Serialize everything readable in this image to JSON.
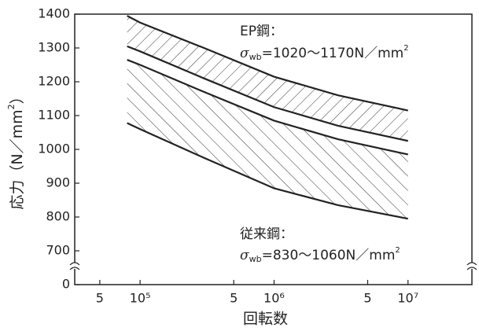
{
  "chart_data": {
    "type": "band-line",
    "xlabel": {
      "text": "回転数"
    },
    "ylabel": {
      "text": "応力（N／mm",
      "sup": "2",
      "end": "）"
    },
    "log_x": true,
    "xlim": [
      32500,
      30000000
    ],
    "xticks": [
      {
        "value": 50000,
        "label": "5"
      },
      {
        "value": 100000,
        "label": "10⁵"
      },
      {
        "value": 500000,
        "label": "5"
      },
      {
        "value": 1000000,
        "label": "10⁶"
      },
      {
        "value": 5000000,
        "label": "5"
      },
      {
        "value": 10000000,
        "label": "10⁷"
      }
    ],
    "ylim": [
      600,
      1400
    ],
    "yticks": [
      0,
      700,
      800,
      900,
      1000,
      1100,
      1200,
      1300,
      1400
    ],
    "axis_break": true,
    "grid": false,
    "x": [
      80000,
      100000,
      300000,
      1000000,
      3000000,
      10000000
    ],
    "series": [
      {
        "color": "#222222",
        "values": [
          1395,
          1375,
          1300,
          1215,
          1160,
          1115
        ]
      },
      {
        "color": "#222222",
        "values": [
          1305,
          1290,
          1210,
          1125,
          1070,
          1025
        ]
      },
      {
        "color": "#222222",
        "values": [
          1265,
          1250,
          1170,
          1085,
          1030,
          985
        ]
      },
      {
        "color": "#222222",
        "values": [
          1078,
          1060,
          975,
          885,
          835,
          795
        ]
      }
    ],
    "annotations": [
      {
        "title": "EP鋼：",
        "symbol": "σ",
        "sub": "wb",
        "text": "=1020～1170N／mm",
        "sup": "2"
      },
      {
        "title": "従来鋼：",
        "symbol": "σ",
        "sub": "wb",
        "text": "=830～1060N／mm",
        "sup": "2"
      }
    ]
  }
}
